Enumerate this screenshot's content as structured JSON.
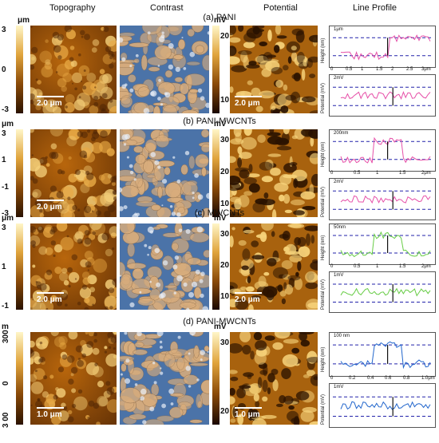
{
  "columns": {
    "topography": "Topography",
    "contrast": "Contrast",
    "potential": "Potential",
    "line_profile": "Line Profile"
  },
  "panels": [
    {
      "title": "(a) PANI",
      "topo_unit": "μm",
      "topo_ticks": [
        "3",
        "0",
        "-3"
      ],
      "topo_scalebar": "2.0 μm",
      "pot_unit": "mV",
      "pot_ticks": [
        "20",
        "10"
      ],
      "pot_scalebar": "2.0 μm",
      "height_label": "Height (nm)",
      "height_scale": "1μm",
      "height_x_ticks": [
        "0",
        "0.5",
        "1",
        "1.5",
        "2",
        "2.5",
        "3μm"
      ],
      "potential_label": "Potential (mV)",
      "potential_scale": "2mV",
      "profile_color": "#e64fa8"
    },
    {
      "title": "(b) PANI-MWCNTs",
      "topo_unit": "μm",
      "topo_ticks": [
        "3",
        "1",
        "-1",
        "-3"
      ],
      "topo_scalebar": "2.0 μm",
      "pot_unit": "mV",
      "pot_ticks": [
        "30",
        "20",
        "10"
      ],
      "pot_scalebar": "",
      "height_label": "Height (nm)",
      "height_scale": "200nm",
      "height_x_ticks": [
        "0",
        "0.5",
        "1",
        "1.5",
        "2μm"
      ],
      "potential_label": "Potential (mV)",
      "potential_scale": "2mV",
      "profile_color": "#e64fa8"
    },
    {
      "title": "(c) MWCNTs",
      "topo_unit": "μm",
      "topo_ticks": [
        "3",
        "1",
        "-1"
      ],
      "topo_scalebar": "2.0 μm",
      "pot_unit": "mV",
      "pot_ticks": [
        "30",
        "20",
        "10"
      ],
      "pot_scalebar": "2.0 μm",
      "height_label": "Height (nm)",
      "height_scale": "50nm",
      "height_x_ticks": [
        "0",
        "0.5",
        "1",
        "1.5",
        "2μm"
      ],
      "potential_label": "Potential (mV)",
      "potential_scale": "1mV",
      "profile_color": "#66cc44"
    },
    {
      "title": "(d) PANI-MWCNTs",
      "topo_unit": "m",
      "topo_ticks": [
        "300",
        "0",
        "3 00"
      ],
      "topo_scalebar": "1.0 μm",
      "pot_unit": "mV",
      "pot_ticks": [
        "30",
        "20"
      ],
      "pot_scalebar": "1.0 μm",
      "height_label": "Height (nm)",
      "height_scale": "100 nm",
      "height_x_ticks": [
        "0",
        "0.2",
        "0.4",
        "0.6",
        "0.8",
        "1.0μm"
      ],
      "potential_label": "Potential (mV)",
      "potential_scale": "1mV",
      "profile_color": "#2266cc"
    }
  ],
  "colors": {
    "topo_dark": "#2a1200",
    "topo_mid": "#b8660c",
    "topo_light": "#f5d07a",
    "contrast_blue": "#4b73a8",
    "contrast_tan": "#d9ad7c",
    "reference_dash": "#2222aa"
  }
}
